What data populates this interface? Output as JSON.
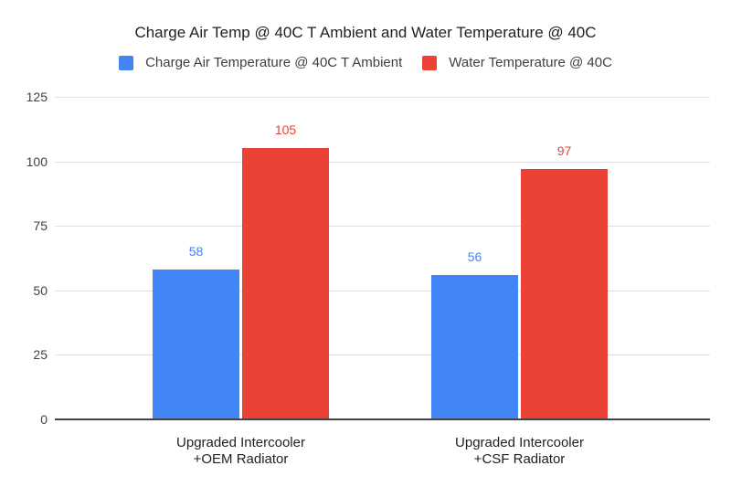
{
  "page": {
    "background": "#ffffff"
  },
  "chart_data": {
    "type": "bar",
    "title": "Charge Air Temp @ 40C T Ambient and Water Temperature @ 40C",
    "categories": [
      [
        "Upgraded Intercooler",
        "+OEM Radiator"
      ],
      [
        "Upgraded Intercooler",
        "+CSF Radiator"
      ]
    ],
    "series": [
      {
        "name": "Charge Air Temperature @ 40C T Ambient",
        "color": "#4285F4",
        "values": [
          58,
          56
        ]
      },
      {
        "name": "Water Temperature @ 40C",
        "color": "#EA4335",
        "values": [
          105,
          97
        ]
      }
    ],
    "data_labels": true,
    "xlabel": "",
    "ylabel": "",
    "ylim": [
      0,
      125
    ],
    "yticks": [
      0,
      25,
      50,
      75,
      100,
      125
    ],
    "grid": true,
    "legend_position": "top",
    "colors": {
      "gridline": "#e0e0e0",
      "baseline": "#424242",
      "tick_label": "#424242",
      "category_label": "#1f1f1f",
      "title": "#212121",
      "background": "#ffffff"
    }
  }
}
